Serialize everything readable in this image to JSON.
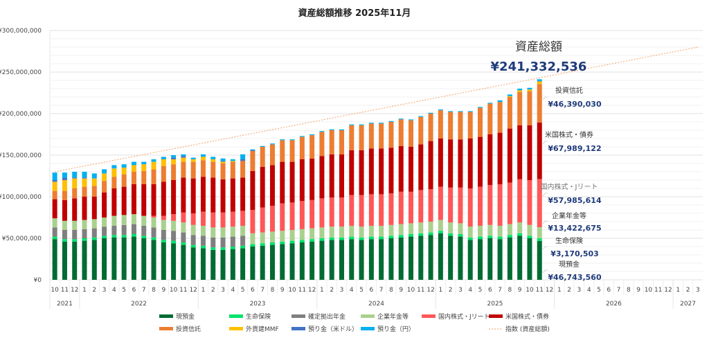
{
  "chart_data": {
    "type": "bar",
    "stacked": true,
    "title": "資産総額推移 2025年11月",
    "xlabel": "",
    "ylabel": "",
    "ylim": [
      0,
      300000000
    ],
    "ytick_values": [
      0,
      50000000,
      100000000,
      150000000,
      200000000,
      250000000,
      300000000
    ],
    "ytick_labels": [
      "¥0",
      "¥50,000,000",
      "¥100,000,000",
      "¥150,000,000",
      "¥200,000,000",
      "¥250,000,000",
      "¥300,000,000"
    ],
    "minor_gridline_step": 10000000,
    "grid": true,
    "legend_position": "bottom",
    "months": [
      "10",
      "11",
      "12",
      "1",
      "2",
      "3",
      "4",
      "5",
      "6",
      "7",
      "8",
      "9",
      "10",
      "11",
      "12",
      "1",
      "2",
      "3",
      "4",
      "5",
      "6",
      "7",
      "8",
      "9",
      "10",
      "11",
      "12",
      "1",
      "2",
      "3",
      "4",
      "5",
      "6",
      "7",
      "8",
      "9",
      "10",
      "11",
      "12",
      "1",
      "2",
      "3",
      "4",
      "5",
      "6",
      "7",
      "8",
      "9",
      "10",
      "11",
      "12",
      "1",
      "2",
      "3",
      "4",
      "5",
      "6",
      "7",
      "8",
      "9",
      "10",
      "11",
      "12",
      "1",
      "2",
      "3"
    ],
    "years": [
      {
        "label": "2021",
        "span": 3
      },
      {
        "label": "2022",
        "span": 12
      },
      {
        "label": "2023",
        "span": 12
      },
      {
        "label": "2024",
        "span": 12
      },
      {
        "label": "2025",
        "span": 12
      },
      {
        "label": "2026",
        "span": 12
      },
      {
        "label": "2027",
        "span": 3
      }
    ],
    "units": "JPY (millions)",
    "series": [
      {
        "name": "現預金",
        "color": "#006b33",
        "values": [
          49,
          46,
          46,
          47,
          48,
          50,
          51,
          51,
          52,
          50,
          48,
          45,
          44,
          42,
          39,
          38,
          36,
          36,
          37,
          38,
          40,
          41,
          42,
          43,
          44,
          45,
          46,
          47,
          48,
          48,
          49,
          48,
          49,
          49,
          50,
          51,
          52,
          53,
          54,
          56,
          53,
          52,
          48,
          49,
          50,
          49,
          51,
          53,
          50,
          46.74
        ]
      },
      {
        "name": "生命保険",
        "color": "#00e36b",
        "values": [
          3,
          3,
          3,
          3,
          3,
          3,
          3,
          3,
          3,
          3,
          3,
          3,
          3,
          3,
          3,
          3,
          3,
          3,
          3,
          3,
          3,
          3,
          3,
          3,
          3,
          3,
          3,
          3,
          3,
          3,
          3,
          3,
          3,
          3,
          3,
          3,
          3,
          3,
          3,
          3,
          3,
          3,
          3,
          3,
          3,
          3,
          3,
          3,
          3,
          3.17
        ]
      },
      {
        "name": "確定拠出年金",
        "color": "#7f7f7f",
        "values": [
          11,
          11,
          11,
          11,
          11,
          11,
          11,
          12,
          12,
          12,
          12,
          12,
          12,
          12,
          12,
          12,
          12,
          12,
          12,
          12,
          0,
          0,
          0,
          0,
          0,
          0,
          0,
          0,
          0,
          0,
          0,
          0,
          0,
          0,
          0,
          0,
          0,
          0,
          0,
          0,
          0,
          0,
          0,
          0,
          0,
          0,
          0,
          0,
          0,
          0
        ]
      },
      {
        "name": "企業年金等",
        "color": "#a9d18e",
        "values": [
          11,
          11,
          11,
          11,
          11,
          11,
          12,
          12,
          12,
          12,
          12,
          12,
          12,
          12,
          12,
          12,
          12,
          12,
          12,
          12,
          13,
          13,
          13,
          13,
          13,
          13,
          13,
          13,
          13,
          13,
          13,
          13,
          13,
          13,
          13,
          13,
          13,
          13,
          13,
          13,
          13,
          13,
          13,
          13,
          13,
          13,
          13,
          13,
          13,
          13.42
        ]
      },
      {
        "name": "国内株式・Jリート",
        "color": "#ff5757",
        "values": [
          0,
          0,
          0,
          0,
          0,
          0,
          0,
          0,
          0,
          0,
          2,
          5,
          8,
          12,
          14,
          17,
          18,
          18,
          18,
          18,
          28,
          30,
          31,
          33,
          33,
          34,
          34,
          35,
          35,
          35,
          37,
          38,
          38,
          38,
          38,
          39,
          38,
          39,
          39,
          40,
          42,
          43,
          46,
          47,
          48,
          50,
          50,
          52,
          54,
          57.99
        ]
      },
      {
        "name": "米国株式・債券",
        "color": "#c00000",
        "values": [
          23,
          25,
          27,
          28,
          27,
          30,
          33,
          34,
          36,
          38,
          38,
          41,
          41,
          42,
          42,
          42,
          42,
          40,
          40,
          40,
          47,
          49,
          49,
          50,
          49,
          50,
          50,
          51,
          52,
          52,
          54,
          54,
          55,
          55,
          55,
          55,
          54,
          55,
          58,
          58,
          58,
          58,
          60,
          60,
          61,
          62,
          65,
          65,
          66,
          67.99
        ]
      },
      {
        "name": "投資信託",
        "color": "#ed7d31",
        "values": [
          10,
          11,
          12,
          12,
          13,
          14,
          14,
          15,
          15,
          16,
          18,
          19,
          19,
          19,
          20,
          20,
          19,
          19,
          20,
          20,
          24,
          24,
          25,
          26,
          26,
          27,
          28,
          29,
          29,
          29,
          30,
          30,
          30,
          30,
          31,
          32,
          32,
          33,
          33,
          34,
          33,
          33,
          32,
          35,
          37,
          37,
          38,
          40,
          41,
          46.39
        ]
      },
      {
        "name": "外貨建MMF",
        "color": "#ffc000",
        "values": [
          11,
          13,
          12,
          10,
          9,
          9,
          10,
          8,
          8,
          8,
          9,
          8,
          6,
          5,
          3,
          4,
          3,
          2,
          1,
          0,
          0,
          0,
          0,
          0,
          0,
          0,
          0,
          0,
          0,
          0,
          0,
          0,
          0,
          0,
          0,
          0,
          0,
          0,
          0,
          0,
          0,
          0,
          0,
          0,
          0,
          0,
          1,
          2,
          2,
          3
        ]
      },
      {
        "name": "預り金（米ドル）",
        "color": "#4472c4",
        "values": [
          2,
          3,
          1,
          1,
          0,
          0,
          0,
          0,
          0,
          0,
          0,
          0,
          2,
          2,
          0,
          0,
          0,
          1,
          0,
          2,
          1,
          0,
          0,
          0,
          0,
          0,
          0,
          0,
          0,
          0,
          0,
          0,
          0,
          0,
          0,
          0,
          0,
          0,
          0,
          0,
          0,
          0,
          0,
          0,
          0,
          0,
          0,
          0,
          0,
          0.5
        ]
      },
      {
        "name": "預り金（円）",
        "color": "#00b0f0",
        "values": [
          9,
          6,
          7,
          7,
          6,
          5,
          4,
          4,
          4,
          3,
          3,
          3,
          3,
          2,
          2,
          3,
          3,
          3,
          2,
          6,
          1,
          1,
          1,
          1,
          1,
          1,
          1,
          1,
          1,
          1,
          1,
          1,
          1,
          1,
          1,
          1,
          1,
          1,
          1,
          1,
          1,
          1,
          1,
          1,
          1,
          2,
          2,
          2,
          2,
          2.13
        ]
      }
    ],
    "trend_line": {
      "name": "指数 (資産総額)",
      "color": "#f4b183",
      "start_value": 130000000,
      "end_value": 280000000
    },
    "annotations": {
      "total_label": "資産総額",
      "total_value": "¥241,332,536",
      "items": [
        {
          "label": "投資信託",
          "value": "¥46,390,030",
          "gray": false
        },
        {
          "label": "米国株式・債券",
          "value": "¥67,989,122",
          "gray": false
        },
        {
          "label": "国内株式・Jリート",
          "value": "¥57,985,614",
          "gray": true
        },
        {
          "label": "企業年金等",
          "value": "¥13,422,675",
          "gray": false
        },
        {
          "label": "生命保険",
          "value": "¥3,170,503",
          "gray": false
        },
        {
          "label": "現預金",
          "value": "¥46,743,560",
          "gray": false
        }
      ]
    },
    "legend": [
      {
        "name": "現預金",
        "color": "#006b33",
        "style": "box"
      },
      {
        "name": "生命保険",
        "color": "#00e36b",
        "style": "box"
      },
      {
        "name": "確定拠出年金",
        "color": "#7f7f7f",
        "style": "box"
      },
      {
        "name": "企業年金等",
        "color": "#a9d18e",
        "style": "box"
      },
      {
        "name": "国内株式・Jリート",
        "color": "#ff5757",
        "style": "box"
      },
      {
        "name": "米国株式・債券",
        "color": "#c00000",
        "style": "box"
      },
      {
        "name": "投資信託",
        "color": "#ed7d31",
        "style": "box"
      },
      {
        "name": "外貨建MMF",
        "color": "#ffc000",
        "style": "box"
      },
      {
        "name": "預り金（米ドル）",
        "color": "#4472c4",
        "style": "box"
      },
      {
        "name": "預り金（円）",
        "color": "#00b0f0",
        "style": "box"
      },
      {
        "name": "指数 (資産総額)",
        "color": "#f4b183",
        "style": "dotted"
      }
    ]
  }
}
